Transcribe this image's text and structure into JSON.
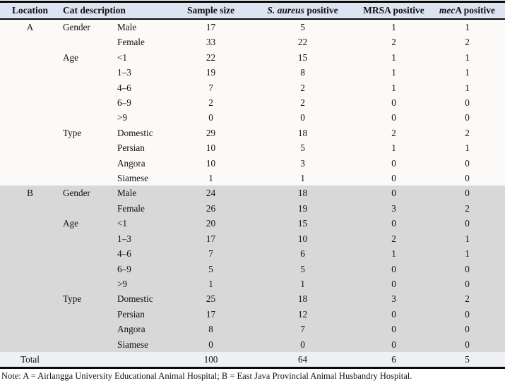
{
  "table": {
    "colors": {
      "header_bg": "#dbe4f0",
      "section_a_bg": "#fbfaf8",
      "section_b_bg": "#d8d8d8",
      "total_row_bg": "#eef0f3",
      "rule_color": "#0b0b0b"
    },
    "headers": {
      "location": "Location",
      "cat_description": "Cat description",
      "sample_size": "Sample size",
      "s_aureus_italic": "S. aureus",
      "s_aureus_rest": " positive",
      "mrsa": "MRSA positive",
      "meca_italic": "mec",
      "meca_rest": "A positive"
    },
    "sections": [
      {
        "location": "A",
        "bg": "#fbfaf8",
        "rows": [
          {
            "group": "Gender",
            "label": "Male",
            "values": [
              "17",
              "5",
              "1",
              "1"
            ]
          },
          {
            "group": "",
            "label": "Female",
            "values": [
              "33",
              "22",
              "2",
              "2"
            ]
          },
          {
            "group": "Age",
            "label": "<1",
            "values": [
              "22",
              "15",
              "1",
              "1"
            ]
          },
          {
            "group": "",
            "label": "1–3",
            "values": [
              "19",
              "8",
              "1",
              "1"
            ]
          },
          {
            "group": "",
            "label": "4–6",
            "values": [
              "7",
              "2",
              "1",
              "1"
            ]
          },
          {
            "group": "",
            "label": "6–9",
            "values": [
              "2",
              "2",
              "0",
              "0"
            ]
          },
          {
            "group": "",
            "label": ">9",
            "values": [
              "0",
              "0",
              "0",
              "0"
            ]
          },
          {
            "group": "Type",
            "label": "Domestic",
            "values": [
              "29",
              "18",
              "2",
              "2"
            ]
          },
          {
            "group": "",
            "label": "Persian",
            "values": [
              "10",
              "5",
              "1",
              "1"
            ]
          },
          {
            "group": "",
            "label": "Angora",
            "values": [
              "10",
              "3",
              "0",
              "0"
            ]
          },
          {
            "group": "",
            "label": "Siamese",
            "values": [
              "1",
              "1",
              "0",
              "0"
            ]
          }
        ]
      },
      {
        "location": "B",
        "bg": "#d8d8d8",
        "rows": [
          {
            "group": "Gender",
            "label": "Male",
            "values": [
              "24",
              "18",
              "0",
              "0"
            ]
          },
          {
            "group": "",
            "label": "Female",
            "values": [
              "26",
              "19",
              "3",
              "2"
            ]
          },
          {
            "group": "Age",
            "label": "<1",
            "values": [
              "20",
              "15",
              "0",
              "0"
            ]
          },
          {
            "group": "",
            "label": "1–3",
            "values": [
              "17",
              "10",
              "2",
              "1"
            ]
          },
          {
            "group": "",
            "label": "4–6",
            "values": [
              "7",
              "6",
              "1",
              "1"
            ]
          },
          {
            "group": "",
            "label": "6–9",
            "values": [
              "5",
              "5",
              "0",
              "0"
            ]
          },
          {
            "group": "",
            "label": ">9",
            "values": [
              "1",
              "1",
              "0",
              "0"
            ]
          },
          {
            "group": "Type",
            "label": "Domestic",
            "values": [
              "25",
              "18",
              "3",
              "2"
            ]
          },
          {
            "group": "",
            "label": "Persian",
            "values": [
              "17",
              "12",
              "0",
              "0"
            ]
          },
          {
            "group": "",
            "label": "Angora",
            "values": [
              "8",
              "7",
              "0",
              "0"
            ]
          },
          {
            "group": "",
            "label": "Siamese",
            "values": [
              "0",
              "0",
              "0",
              "0"
            ]
          }
        ]
      }
    ],
    "total": {
      "label": "Total",
      "values": [
        "100",
        "64",
        "6",
        "5"
      ]
    },
    "note": "Note: A = Airlangga University Educational Animal Hospital; B = East Java Provincial Animal Husbandry Hospital."
  }
}
